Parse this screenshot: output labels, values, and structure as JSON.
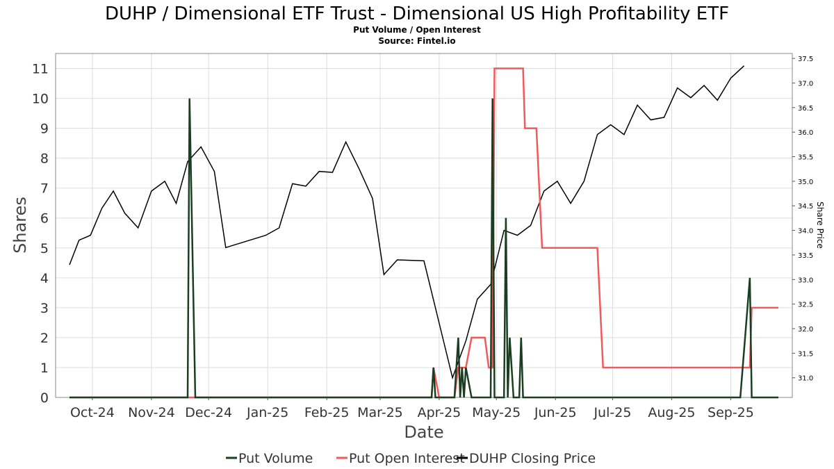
{
  "chart_data": {
    "type": "line",
    "title": "DUHP / Dimensional ETF Trust - Dimensional US High Profitability ETF",
    "subtitle": "Put Volume / Open Interest",
    "source": "Source: Fintel.io",
    "xlabel": "Date",
    "ylabel": "Shares",
    "y2label": "Share Price",
    "ylim": [
      0,
      11.5
    ],
    "y2lim": [
      30.6,
      37.6
    ],
    "yticks": [
      "0",
      "1",
      "2",
      "3",
      "4",
      "5",
      "6",
      "7",
      "8",
      "9",
      "10",
      "11"
    ],
    "y2ticks": [
      "31.0",
      "31.5",
      "32.0",
      "32.5",
      "33.0",
      "33.5",
      "34.0",
      "34.5",
      "35.0",
      "35.5",
      "36.0",
      "36.5",
      "37.0",
      "37.5"
    ],
    "x_range": [
      "2024-09-19",
      "2025-09-26"
    ],
    "xticks": [
      {
        "label": "Oct-24",
        "date": "2024-10-01"
      },
      {
        "label": "Nov-24",
        "date": "2024-11-01"
      },
      {
        "label": "Dec-24",
        "date": "2024-12-01"
      },
      {
        "label": "Jan-25",
        "date": "2025-01-01"
      },
      {
        "label": "Feb-25",
        "date": "2025-02-01"
      },
      {
        "label": "Mar-25",
        "date": "2025-03-01"
      },
      {
        "label": "Apr-25",
        "date": "2025-04-01"
      },
      {
        "label": "May-25",
        "date": "2025-05-01"
      },
      {
        "label": "Jun-25",
        "date": "2025-06-01"
      },
      {
        "label": "Jul-25",
        "date": "2025-07-01"
      },
      {
        "label": "Aug-25",
        "date": "2025-08-01"
      },
      {
        "label": "Sep-25",
        "date": "2025-09-01"
      }
    ],
    "grid": true,
    "legend_position": "bottom",
    "series": [
      {
        "name": "Put Volume",
        "color": "#1b3d22",
        "axis": "left",
        "points": [
          [
            "2024-09-19",
            0
          ],
          [
            "2024-11-20",
            0
          ],
          [
            "2024-11-21",
            10
          ],
          [
            "2024-11-24",
            0
          ],
          [
            "2025-03-28",
            0
          ],
          [
            "2025-03-29",
            1
          ],
          [
            "2025-03-30",
            0
          ],
          [
            "2025-04-09",
            0
          ],
          [
            "2025-04-11",
            2
          ],
          [
            "2025-04-12",
            0
          ],
          [
            "2025-04-13",
            1
          ],
          [
            "2025-04-14",
            0
          ],
          [
            "2025-04-15",
            1
          ],
          [
            "2025-04-18",
            0
          ],
          [
            "2025-04-28",
            0
          ],
          [
            "2025-04-29",
            10
          ],
          [
            "2025-04-30",
            0
          ],
          [
            "2025-05-05",
            0
          ],
          [
            "2025-05-06",
            6
          ],
          [
            "2025-05-07",
            0
          ],
          [
            "2025-05-08",
            2
          ],
          [
            "2025-05-10",
            0
          ],
          [
            "2025-05-13",
            0
          ],
          [
            "2025-05-14",
            2
          ],
          [
            "2025-05-15",
            0
          ],
          [
            "2025-09-06",
            0
          ],
          [
            "2025-09-11",
            4
          ],
          [
            "2025-09-12",
            0
          ],
          [
            "2025-09-26",
            0
          ]
        ]
      },
      {
        "name": "Put Open Interest",
        "color": "#f05a5a",
        "axis": "left",
        "points": [
          [
            "2024-09-19",
            0
          ],
          [
            "2025-03-28",
            0
          ],
          [
            "2025-03-29",
            1
          ],
          [
            "2025-04-01",
            0
          ],
          [
            "2025-04-09",
            0
          ],
          [
            "2025-04-11",
            1
          ],
          [
            "2025-04-15",
            1
          ],
          [
            "2025-04-18",
            2
          ],
          [
            "2025-04-25",
            2
          ],
          [
            "2025-04-27",
            1
          ],
          [
            "2025-04-29",
            1
          ],
          [
            "2025-04-30",
            11
          ],
          [
            "2025-05-15",
            11
          ],
          [
            "2025-05-16",
            9
          ],
          [
            "2025-05-22",
            9
          ],
          [
            "2025-05-25",
            5
          ],
          [
            "2025-06-23",
            5
          ],
          [
            "2025-06-26",
            1
          ],
          [
            "2025-09-11",
            1
          ],
          [
            "2025-09-12",
            3
          ],
          [
            "2025-09-26",
            3
          ]
        ]
      },
      {
        "name": "DUHP Closing Price",
        "color": "#000000",
        "axis": "right",
        "points": [
          [
            "2024-09-19",
            33.3
          ],
          [
            "2024-09-24",
            33.8
          ],
          [
            "2024-09-30",
            33.9
          ],
          [
            "2024-10-06",
            34.45
          ],
          [
            "2024-10-12",
            34.8
          ],
          [
            "2024-10-18",
            34.35
          ],
          [
            "2024-10-25",
            34.05
          ],
          [
            "2024-11-01",
            34.8
          ],
          [
            "2024-11-08",
            35.0
          ],
          [
            "2024-11-14",
            34.55
          ],
          [
            "2024-11-20",
            35.4
          ],
          [
            "2024-11-27",
            35.7
          ],
          [
            "2024-12-04",
            35.2
          ],
          [
            "2024-12-10",
            33.65
          ],
          [
            "2024-12-31",
            33.9
          ],
          [
            "2025-01-07",
            34.05
          ],
          [
            "2025-01-14",
            34.95
          ],
          [
            "2025-01-21",
            34.9
          ],
          [
            "2025-01-28",
            35.2
          ],
          [
            "2025-02-04",
            35.18
          ],
          [
            "2025-02-11",
            35.8
          ],
          [
            "2025-02-18",
            35.25
          ],
          [
            "2025-02-25",
            34.65
          ],
          [
            "2025-03-03",
            33.1
          ],
          [
            "2025-03-10",
            33.4
          ],
          [
            "2025-03-24",
            33.38
          ],
          [
            "2025-04-08",
            31.0
          ],
          [
            "2025-04-15",
            31.75
          ],
          [
            "2025-04-21",
            32.6
          ],
          [
            "2025-04-28",
            32.9
          ],
          [
            "2025-05-05",
            34.0
          ],
          [
            "2025-05-12",
            33.9
          ],
          [
            "2025-05-19",
            34.1
          ],
          [
            "2025-05-26",
            34.8
          ],
          [
            "2025-06-02",
            35.0
          ],
          [
            "2025-06-09",
            34.55
          ],
          [
            "2025-06-16",
            35.0
          ],
          [
            "2025-06-23",
            35.95
          ],
          [
            "2025-06-30",
            36.15
          ],
          [
            "2025-07-07",
            35.95
          ],
          [
            "2025-07-14",
            36.55
          ],
          [
            "2025-07-21",
            36.25
          ],
          [
            "2025-07-28",
            36.3
          ],
          [
            "2025-08-04",
            36.9
          ],
          [
            "2025-08-11",
            36.7
          ],
          [
            "2025-08-18",
            36.95
          ],
          [
            "2025-08-25",
            36.65
          ],
          [
            "2025-09-01",
            37.1
          ],
          [
            "2025-09-08",
            37.35
          ]
        ]
      }
    ]
  }
}
